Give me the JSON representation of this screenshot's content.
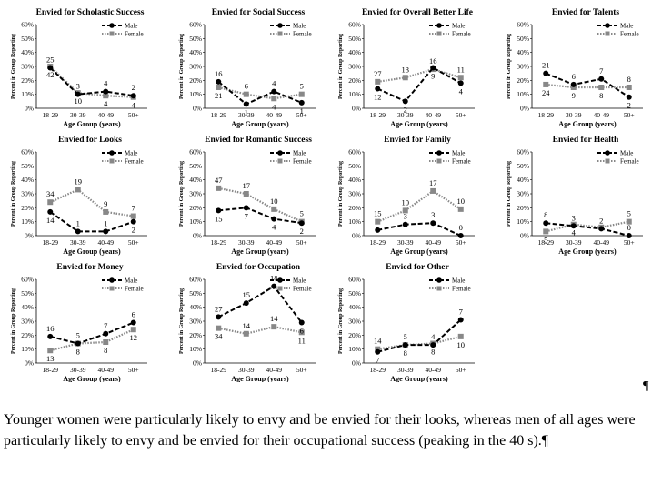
{
  "legend": {
    "male": "Male",
    "female": "Female"
  },
  "caption": "Younger women were particularly likely to envy and be envied for their looks, whereas men of all ages were particularly likely to envy and be envied for their occupational success (peaking in the 40 s).¶",
  "pilcrow": "¶",
  "colors": {
    "male": "#000000",
    "female": "#888888"
  },
  "chart_data": [
    {
      "type": "line",
      "title": "Envied for Scholastic Success",
      "categories": [
        "18-29",
        "30-39",
        "40-49",
        "50+"
      ],
      "xlabel": "Age Group (years)",
      "ylabel": "Percent in Group Reporting",
      "yticks": [
        "0%",
        "10%",
        "20%",
        "30%",
        "40%",
        "50%",
        "60%"
      ],
      "ylim": [
        0,
        60
      ],
      "series": [
        {
          "name": "Male",
          "values": [
            29,
            10,
            12,
            9
          ],
          "labels": [
            "25",
            "3",
            "4",
            "2"
          ]
        },
        {
          "name": "Female",
          "values": [
            30,
            11,
            9,
            8
          ],
          "labels": [
            "42",
            "10",
            "4",
            "4"
          ]
        }
      ]
    },
    {
      "type": "line",
      "title": "Envied for Social Success",
      "categories": [
        "18-29",
        "30-39",
        "40-49",
        "50+"
      ],
      "xlabel": "Age Group (years)",
      "ylabel": "Percent in Group Reporting",
      "yticks": [
        "0%",
        "10%",
        "20%",
        "30%",
        "40%",
        "50%",
        "60%"
      ],
      "ylim": [
        0,
        60
      ],
      "series": [
        {
          "name": "Male",
          "values": [
            19,
            3,
            12,
            4
          ],
          "labels": [
            "16",
            "1",
            "4",
            "1"
          ]
        },
        {
          "name": "Female",
          "values": [
            15,
            10,
            7,
            10
          ],
          "labels": [
            "21",
            "6",
            "4",
            "5"
          ]
        }
      ]
    },
    {
      "type": "line",
      "title": "Envied for Overall Better Life",
      "categories": [
        "18-29",
        "30-39",
        "40-49",
        "50+"
      ],
      "xlabel": "Age Group (years)",
      "ylabel": "Percent in Group Reporting",
      "yticks": [
        "0%",
        "10%",
        "20%",
        "30%",
        "40%",
        "50%",
        "60%"
      ],
      "ylim": [
        0,
        60
      ],
      "series": [
        {
          "name": "Male",
          "values": [
            14,
            5,
            29,
            18
          ],
          "labels": [
            "12",
            "2",
            "9",
            "4"
          ]
        },
        {
          "name": "Female",
          "values": [
            19,
            22,
            28,
            22
          ],
          "labels": [
            "27",
            "13",
            "16",
            "11"
          ]
        }
      ]
    },
    {
      "type": "line",
      "title": "Envied for Talents",
      "categories": [
        "18-29",
        "30-39",
        "40-49",
        "50+"
      ],
      "xlabel": "Age Group (years)",
      "ylabel": "Percent in Group Reporting",
      "yticks": [
        "0%",
        "10%",
        "20%",
        "30%",
        "40%",
        "50%",
        "60%"
      ],
      "ylim": [
        0,
        60
      ],
      "series": [
        {
          "name": "Male",
          "values": [
            25,
            17,
            21,
            8
          ],
          "labels": [
            "21",
            "6",
            "7",
            "2"
          ]
        },
        {
          "name": "Female",
          "values": [
            17,
            15,
            15,
            15
          ],
          "labels": [
            "24",
            "9",
            "8",
            "8"
          ]
        }
      ]
    },
    {
      "type": "line",
      "title": "Envied for Looks",
      "categories": [
        "18-29",
        "30-39",
        "40-49",
        "50+"
      ],
      "xlabel": "Age Group (years)",
      "ylabel": "Percent in Group Reporting",
      "yticks": [
        "0%",
        "10%",
        "20%",
        "30%",
        "40%",
        "50%",
        "60%"
      ],
      "ylim": [
        0,
        60
      ],
      "series": [
        {
          "name": "Male",
          "values": [
            17,
            3,
            3,
            10
          ],
          "labels": [
            "14",
            "1",
            "1",
            "2"
          ]
        },
        {
          "name": "Female",
          "values": [
            24,
            33,
            17,
            14
          ],
          "labels": [
            "34",
            "19",
            "9",
            "7"
          ]
        }
      ]
    },
    {
      "type": "line",
      "title": "Envied for Romantic Success",
      "categories": [
        "18-29",
        "30-39",
        "40-49",
        "50+"
      ],
      "xlabel": "Age Group (years)",
      "ylabel": "Percent in Group Reporting",
      "yticks": [
        "0%",
        "10%",
        "20%",
        "30%",
        "40%",
        "50%",
        "60%"
      ],
      "ylim": [
        0,
        60
      ],
      "series": [
        {
          "name": "Male",
          "values": [
            18,
            20,
            12,
            9
          ],
          "labels": [
            "15",
            "7",
            "4",
            "2"
          ]
        },
        {
          "name": "Female",
          "values": [
            34,
            30,
            19,
            10
          ],
          "labels": [
            "47",
            "17",
            "10",
            "5"
          ]
        }
      ]
    },
    {
      "type": "line",
      "title": "Envied for Family",
      "categories": [
        "18-29",
        "30-39",
        "40-49",
        "50+"
      ],
      "xlabel": "Age Group (years)",
      "ylabel": "Percent in Group Reporting",
      "yticks": [
        "0%",
        "10%",
        "20%",
        "30%",
        "40%",
        "50%",
        "60%"
      ],
      "ylim": [
        0,
        60
      ],
      "series": [
        {
          "name": "Male",
          "values": [
            4,
            8,
            9,
            0
          ],
          "labels": [
            "",
            "3",
            "3",
            "0"
          ]
        },
        {
          "name": "Female",
          "values": [
            10,
            18,
            32,
            19
          ],
          "labels": [
            "15",
            "10",
            "17",
            "10"
          ]
        }
      ]
    },
    {
      "type": "line",
      "title": "Envied for Health",
      "categories": [
        "18-29",
        "30-39",
        "40-49",
        "50+"
      ],
      "xlabel": "Age Group (years)",
      "ylabel": "Percent in Group Reporting",
      "yticks": [
        "0%",
        "10%",
        "20%",
        "30%",
        "40%",
        "50%",
        "60%"
      ],
      "ylim": [
        0,
        60
      ],
      "series": [
        {
          "name": "Male",
          "values": [
            9,
            7,
            5,
            0
          ],
          "labels": [
            "8",
            "3",
            "2",
            "0"
          ]
        },
        {
          "name": "Female",
          "values": [
            3,
            8,
            6,
            10
          ],
          "labels": [
            "5",
            "4",
            "",
            "5"
          ]
        }
      ]
    },
    {
      "type": "line",
      "title": "Envied for Money",
      "categories": [
        "18-29",
        "30-39",
        "40-49",
        "50+"
      ],
      "xlabel": "Age Group (years)",
      "ylabel": "Percent in Group Reporting",
      "yticks": [
        "0%",
        "10%",
        "20%",
        "30%",
        "40%",
        "50%",
        "60%"
      ],
      "ylim": [
        0,
        60
      ],
      "series": [
        {
          "name": "Male",
          "values": [
            19,
            14,
            21,
            29
          ],
          "labels": [
            "16",
            "5",
            "7",
            "6"
          ]
        },
        {
          "name": "Female",
          "values": [
            9,
            14,
            15,
            24
          ],
          "labels": [
            "13",
            "8",
            "8",
            "12"
          ]
        }
      ]
    },
    {
      "type": "line",
      "title": "Envied for Occupation",
      "categories": [
        "18-29",
        "30-39",
        "40-49",
        "50+"
      ],
      "xlabel": "Age Group (years)",
      "ylabel": "Percent in Group Reporting",
      "yticks": [
        "0%",
        "10%",
        "20%",
        "30%",
        "40%",
        "50%",
        "60%"
      ],
      "ylim": [
        0,
        60
      ],
      "series": [
        {
          "name": "Male",
          "values": [
            33,
            43,
            55,
            29
          ],
          "labels": [
            "27",
            "15",
            "18",
            "6"
          ]
        },
        {
          "name": "Female",
          "values": [
            25,
            21,
            26,
            22
          ],
          "labels": [
            "34",
            "14",
            "14",
            "11"
          ]
        }
      ]
    },
    {
      "type": "line",
      "title": "Envied for Other",
      "categories": [
        "18-29",
        "30-39",
        "40-49",
        "50+"
      ],
      "xlabel": "Age Group (years)",
      "ylabel": "Percent in Group Reporting",
      "yticks": [
        "0%",
        "10%",
        "20%",
        "30%",
        "40%",
        "50%",
        "60%"
      ],
      "ylim": [
        0,
        60
      ],
      "series": [
        {
          "name": "Male",
          "values": [
            8,
            13,
            13,
            31
          ],
          "labels": [
            "7",
            "5",
            "4",
            "7"
          ]
        },
        {
          "name": "Female",
          "values": [
            10,
            13,
            14,
            19
          ],
          "labels": [
            "14",
            "8",
            "8",
            "10"
          ]
        }
      ]
    }
  ]
}
